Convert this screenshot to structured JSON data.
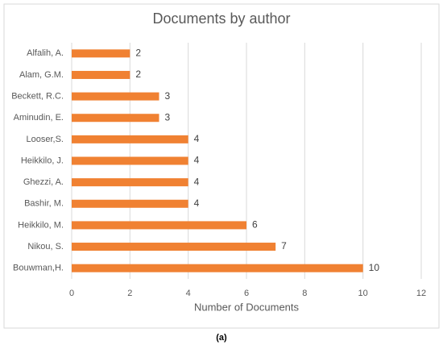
{
  "chart_data": {
    "type": "hbar",
    "title": "Documents by author",
    "x_label": "Number of Documents",
    "categories": [
      "Alfalih, A.",
      "Alam, G.M.",
      "Beckett, R.C.",
      "Aminudin, E.",
      "Looser,S.",
      "Heikkilo, J.",
      "Ghezzi, A.",
      "Bashir, M.",
      "Heikkilo, M.",
      "Nikou, S.",
      "Bouwman,H."
    ],
    "values": [
      2,
      2,
      3,
      3,
      4,
      4,
      4,
      4,
      6,
      7,
      10
    ],
    "color": "#f08132",
    "xlim": [
      0,
      12
    ],
    "xticks": [
      0,
      2,
      4,
      6,
      8,
      10,
      12
    ],
    "grid": true
  },
  "caption": "(a)"
}
